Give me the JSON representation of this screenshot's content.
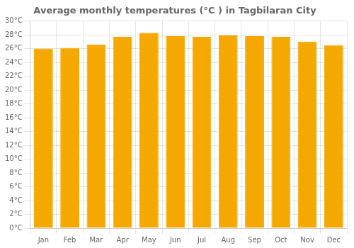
{
  "chart_data": {
    "type": "bar",
    "title": "Average monthly temperatures (°C ) in Tagbilaran City",
    "categories": [
      "Jan",
      "Feb",
      "Mar",
      "Apr",
      "May",
      "Jun",
      "Jul",
      "Aug",
      "Sep",
      "Oct",
      "Nov",
      "Dec"
    ],
    "values": [
      26.0,
      26.1,
      26.6,
      27.7,
      28.3,
      27.8,
      27.7,
      27.9,
      27.8,
      27.7,
      27.0,
      26.5
    ],
    "color": "#F5A800",
    "ylim": [
      0,
      30
    ],
    "yticks": [
      {
        "value": 0,
        "label": "0°C"
      },
      {
        "value": 2,
        "label": "2°C"
      },
      {
        "value": 4,
        "label": "4°C"
      },
      {
        "value": 6,
        "label": "6°C"
      },
      {
        "value": 8,
        "label": "8°C"
      },
      {
        "value": 10,
        "label": "10°C"
      },
      {
        "value": 12,
        "label": "12°C"
      },
      {
        "value": 14,
        "label": "14°C"
      },
      {
        "value": 16,
        "label": "16°C"
      },
      {
        "value": 18,
        "label": "18°C"
      },
      {
        "value": 20,
        "label": "20°C"
      },
      {
        "value": 22,
        "label": "22°C"
      },
      {
        "value": 24,
        "label": "24°C"
      },
      {
        "value": 26,
        "label": "26°C"
      },
      {
        "value": 28,
        "label": "28°C"
      },
      {
        "value": 30,
        "label": "30°C"
      }
    ],
    "grid": true
  }
}
